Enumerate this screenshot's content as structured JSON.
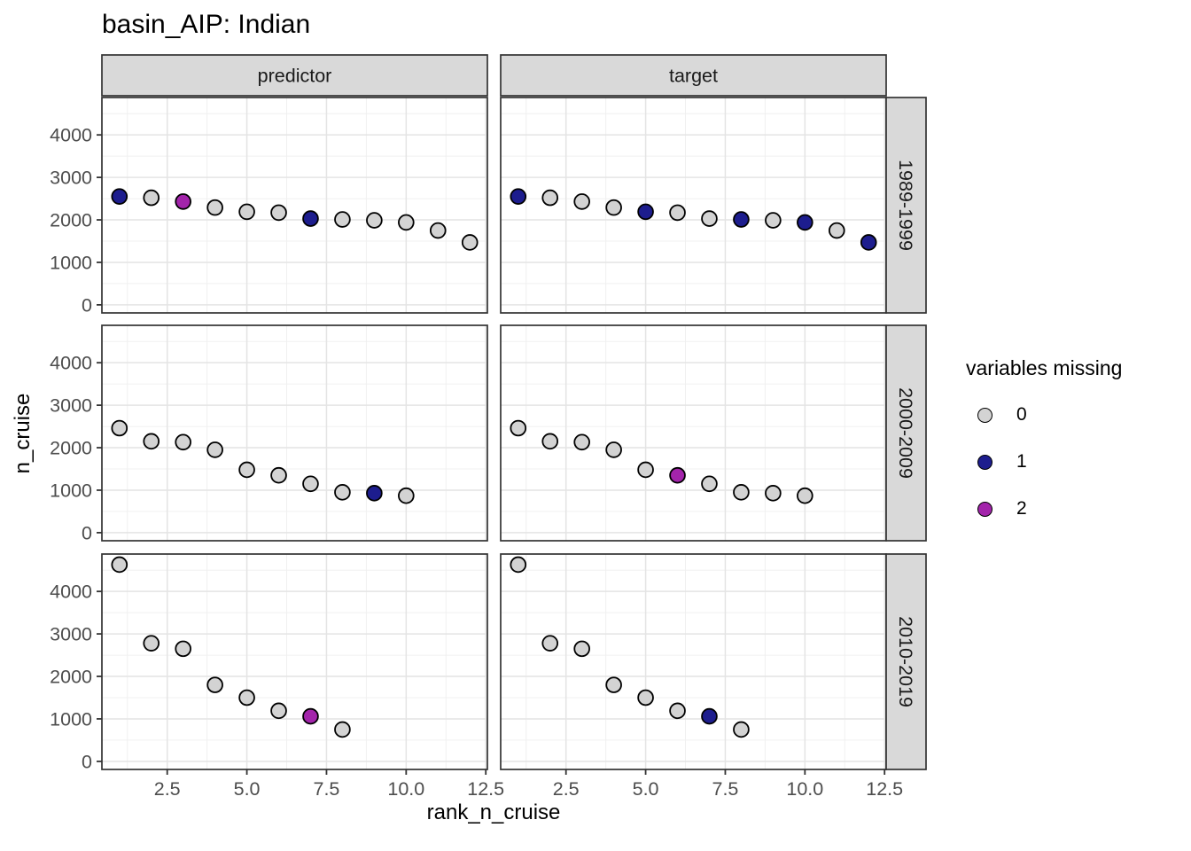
{
  "page": {
    "background": "#ffffff"
  },
  "chart_data": {
    "type": "scatter",
    "title": "basin_AIP: Indian",
    "xlabel": "rank_n_cruise",
    "ylabel": "n_cruise",
    "facet_columns": [
      "predictor",
      "target"
    ],
    "facet_rows": [
      "1989-1999",
      "2000-2009",
      "2010-2019"
    ],
    "x_ticks": {
      "values": [
        2.5,
        5.0,
        7.5,
        10.0,
        12.5
      ],
      "labels": [
        "2.5",
        "5.0",
        "7.5",
        "10.0",
        "12.5"
      ]
    },
    "y_ticks": {
      "values": [
        0,
        1000,
        2000,
        3000,
        4000
      ],
      "labels": [
        "0",
        "1000",
        "2000",
        "3000",
        "4000"
      ]
    },
    "x_minor": [
      1.25,
      3.75,
      6.25,
      8.75,
      11.25
    ],
    "y_minor": [
      500,
      1500,
      2500,
      3500,
      4500
    ],
    "xlim": [
      0.45,
      12.55
    ],
    "ylim": [
      -190,
      4880
    ],
    "grid": true,
    "legend": {
      "title": "variables missing",
      "position": "right",
      "entries": [
        {
          "label": "0",
          "color": "#d3d3d3"
        },
        {
          "label": "1",
          "color": "#1d1d8e"
        },
        {
          "label": "2",
          "color": "#a324ab"
        }
      ]
    },
    "color_map": {
      "0": "#d3d3d3",
      "1": "#1d1d8e",
      "2": "#a324ab"
    },
    "point_stroke": "#000000",
    "panels": [
      {
        "col": "predictor",
        "row": "1989-1999",
        "x": [
          1,
          2,
          3,
          4,
          5,
          6,
          7,
          8,
          9,
          10,
          11,
          12
        ],
        "y": [
          2550,
          2520,
          2430,
          2290,
          2190,
          2170,
          2030,
          2010,
          1990,
          1940,
          1750,
          1470
        ],
        "missing": [
          1,
          0,
          2,
          0,
          0,
          0,
          1,
          0,
          0,
          0,
          0,
          0
        ]
      },
      {
        "col": "target",
        "row": "1989-1999",
        "x": [
          1,
          2,
          3,
          4,
          5,
          6,
          7,
          8,
          9,
          10,
          11,
          12
        ],
        "y": [
          2550,
          2520,
          2430,
          2290,
          2190,
          2170,
          2030,
          2010,
          1990,
          1940,
          1750,
          1470
        ],
        "missing": [
          1,
          0,
          0,
          0,
          1,
          0,
          0,
          1,
          0,
          1,
          0,
          1
        ]
      },
      {
        "col": "predictor",
        "row": "2000-2009",
        "x": [
          1,
          2,
          3,
          4,
          5,
          6,
          7,
          8,
          9,
          10
        ],
        "y": [
          2460,
          2150,
          2130,
          1950,
          1480,
          1350,
          1150,
          950,
          930,
          870
        ],
        "missing": [
          0,
          0,
          0,
          0,
          0,
          0,
          0,
          0,
          1,
          0
        ]
      },
      {
        "col": "target",
        "row": "2000-2009",
        "x": [
          1,
          2,
          3,
          4,
          5,
          6,
          7,
          8,
          9,
          10
        ],
        "y": [
          2460,
          2150,
          2130,
          1950,
          1480,
          1350,
          1150,
          950,
          930,
          870
        ],
        "missing": [
          0,
          0,
          0,
          0,
          0,
          2,
          0,
          0,
          0,
          0
        ]
      },
      {
        "col": "predictor",
        "row": "2010-2019",
        "x": [
          1,
          2,
          3,
          4,
          5,
          6,
          7,
          8
        ],
        "y": [
          4630,
          2780,
          2650,
          1800,
          1500,
          1190,
          1060,
          750
        ],
        "missing": [
          0,
          0,
          0,
          0,
          0,
          0,
          2,
          0
        ]
      },
      {
        "col": "target",
        "row": "2010-2019",
        "x": [
          1,
          2,
          3,
          4,
          5,
          6,
          7,
          8
        ],
        "y": [
          4630,
          2780,
          2650,
          1800,
          1500,
          1190,
          1060,
          750
        ],
        "missing": [
          0,
          0,
          0,
          0,
          0,
          0,
          1,
          0
        ]
      }
    ]
  },
  "colors": {
    "strip_bg": "#d9d9d9",
    "strip_border": "#333333",
    "strip_text": "#1a1a1a",
    "panel_border": "#333333",
    "grid_major": "#e4e4e4",
    "grid_minor": "#f0f0f0",
    "tick_mark": "#333333",
    "tick_label": "#4d4d4d"
  }
}
